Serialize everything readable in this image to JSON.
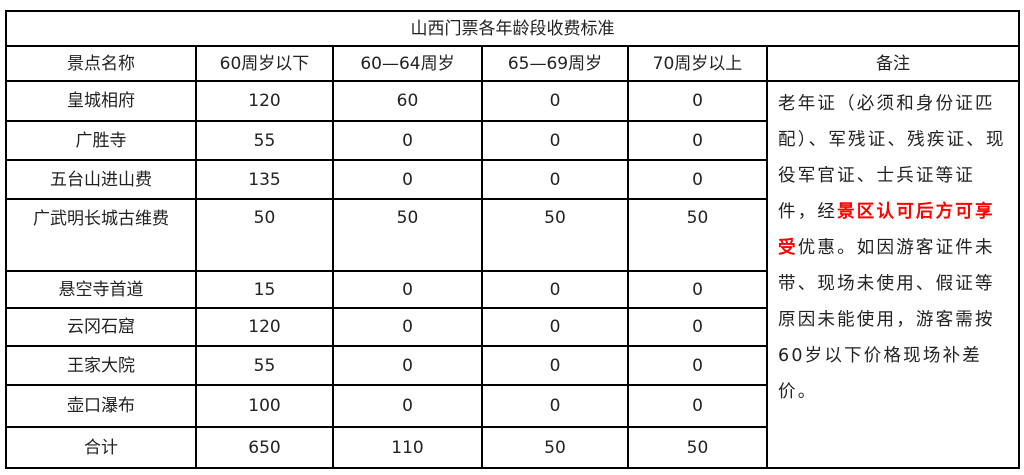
{
  "title": "山西门票各年龄段收费标准",
  "headers": [
    "景点名称",
    "60周岁以下",
    "60—64周岁",
    "65—69周岁",
    "70周岁以上",
    "备注"
  ],
  "rows": [
    [
      "皇城相府",
      "120",
      "60",
      "0",
      "0"
    ],
    [
      "广胜寺",
      "55",
      "0",
      "0",
      "0"
    ],
    [
      "五台山进山费",
      "135",
      "0",
      "0",
      "0"
    ],
    [
      "广武明长城古维费",
      "50",
      "50",
      "50",
      "50"
    ],
    [
      "悬空寺首道",
      "15",
      "0",
      "0",
      "0"
    ],
    [
      "云冈石窟",
      "120",
      "0",
      "0",
      "0"
    ],
    [
      "王家大院",
      "55",
      "0",
      "0",
      "0"
    ],
    [
      "壶口瀑布",
      "100",
      "0",
      "0",
      "0"
    ]
  ],
  "total": [
    "合计",
    "650",
    "110",
    "50",
    "50"
  ],
  "note": {
    "part1": "老年证（必须和身份证匹配）、军残证、残疾证、现役军官证、士兵证等证",
    "part2": "件，经",
    "highlight": "景区认可后方可享受",
    "part3": "优惠。如因游客证件未带、现场未使用、假证等原因未能使用，游客需按60岁以下价格现场补差价。"
  },
  "colors": {
    "highlight": "#ff0000",
    "border": "#000000"
  }
}
